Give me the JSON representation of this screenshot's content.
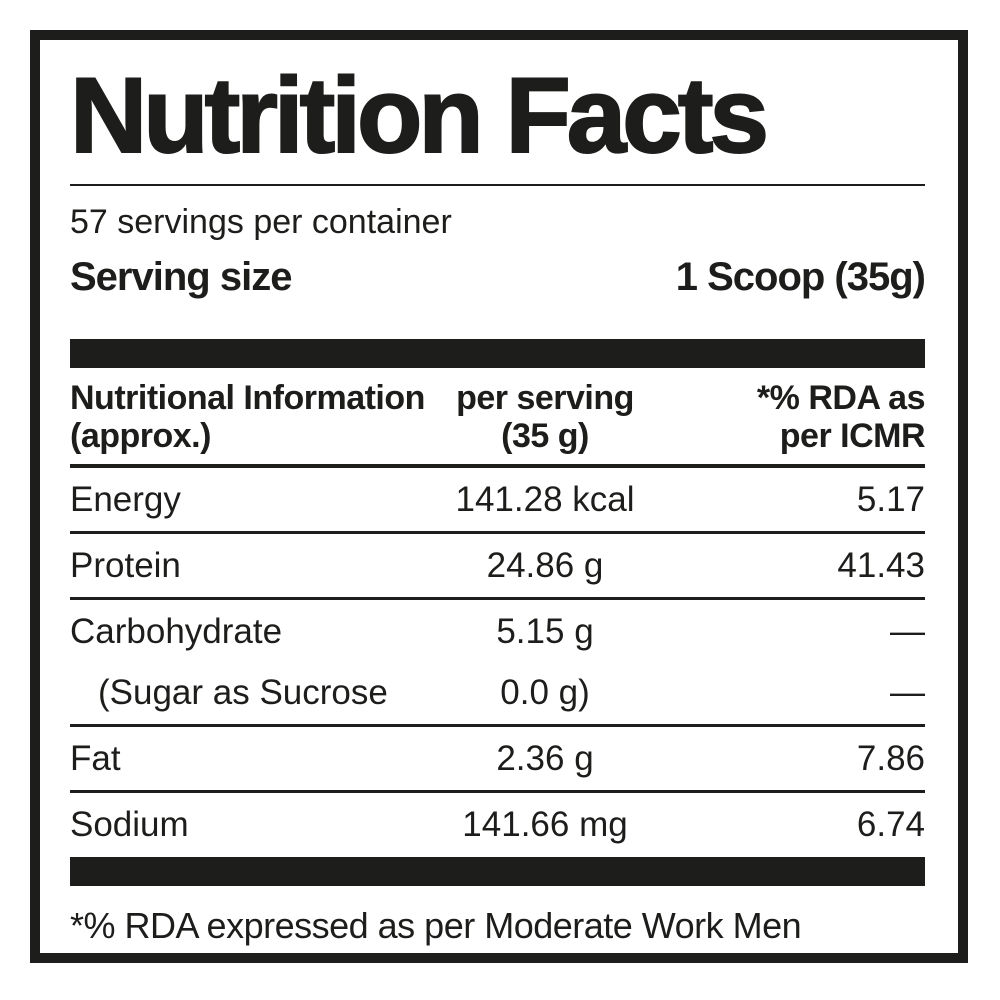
{
  "label": {
    "title": "Nutrition Facts",
    "servings_per_container": "57 servings per container",
    "serving_size": {
      "label": "Serving size",
      "value": "1 Scoop (35g)"
    },
    "table": {
      "header": {
        "nutrient_line1": "Nutritional Information",
        "nutrient_line2": "(approx.)",
        "per_serving_line1": "per serving",
        "per_serving_line2": "(35 g)",
        "rda_line1": "*% RDA as",
        "rda_line2": "per ICMR"
      },
      "rows": [
        {
          "name": "Energy",
          "amount": "141.28 kcal",
          "rda": "5.17"
        },
        {
          "name": "Protein",
          "amount": "24.86 g",
          "rda": "41.43"
        },
        {
          "name": "Carbohydrate",
          "amount": "5.15 g",
          "rda": "—"
        },
        {
          "name": "(Sugar as Sucrose",
          "amount": "0.0 g)",
          "rda": "—"
        },
        {
          "name": "Fat",
          "amount": "2.36 g",
          "rda": "7.86"
        },
        {
          "name": "Sodium",
          "amount": "141.66 mg",
          "rda": "6.74"
        }
      ]
    },
    "footnote": "*% RDA expressed as per Moderate Work Men",
    "colors": {
      "ink": "#1d1d1b",
      "background": "#ffffff"
    }
  }
}
